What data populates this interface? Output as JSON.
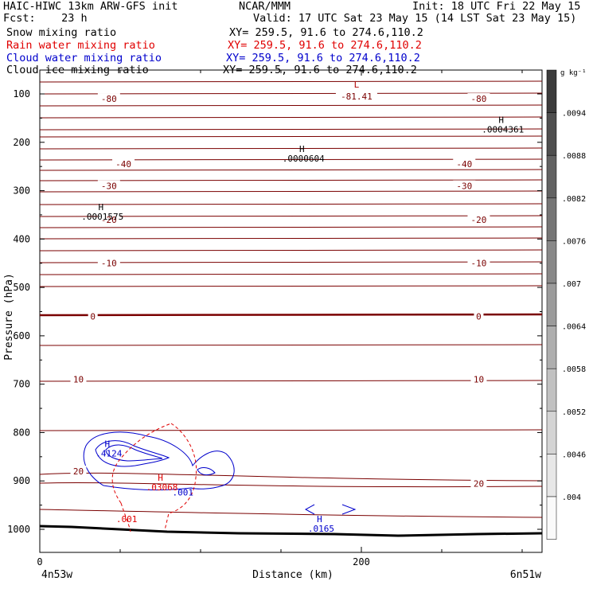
{
  "header": {
    "line1_left": "HAIC-HIWC 13km ARW-GFS init",
    "line1_mid": "NCAR/MMM",
    "line1_right": "Init: 18 UTC Fri 22 May 15",
    "line2_left": "Fcst:    23 h",
    "line2_right": "Valid: 17 UTC Sat 23 May 15 (14 LST Sat 23 May 15)",
    "fields": [
      {
        "name": "Snow mixing ratio",
        "xy": "XY= 259.5, 91.6 to 274.6,110.2",
        "color": "#000000"
      },
      {
        "name": "Rain water mixing ratio",
        "xy": "XY= 259.5, 91.6 to 274.6,110.2",
        "color": "#e00000"
      },
      {
        "name": "Cloud water mixing ratio",
        "xy": "XY= 259.5, 91.6 to 274.6,110.2",
        "color": "#0000cc"
      },
      {
        "name": "Cloud ice mixing ratio",
        "xy": "XY= 259.5, 91.6 to 274.6,110.2",
        "color": "#000000"
      }
    ]
  },
  "chart_data": {
    "type": "contour",
    "ylabel": "Pressure (hPa)",
    "xlabel": "Distance (km)",
    "xlim": [
      0,
      300
    ],
    "ylim": [
      1050,
      50
    ],
    "xticks": [
      0,
      200
    ],
    "yticks": [
      100,
      200,
      300,
      400,
      500,
      600,
      700,
      800,
      900,
      1000
    ],
    "left_endpoint_label": "4n53w",
    "right_endpoint_label": "6n51w",
    "colorbar": {
      "unit": "g kg⁻¹",
      "ticks": [
        ".0094",
        ".0088",
        ".0082",
        ".0076",
        ".007",
        ".0064",
        ".0058",
        ".0052",
        ".0046",
        ".004"
      ]
    },
    "temperature_labels": [
      {
        "text": "-80",
        "x": 43,
        "p": 110
      },
      {
        "text": "-80",
        "x": 273,
        "p": 110
      },
      {
        "text": "-81.41",
        "x": 197,
        "p": 105
      },
      {
        "text": "-40",
        "x": 52,
        "p": 245
      },
      {
        "text": "-40",
        "x": 264,
        "p": 245
      },
      {
        "text": "-30",
        "x": 43,
        "p": 290
      },
      {
        "text": "-30",
        "x": 264,
        "p": 290
      },
      {
        "text": "-20",
        "x": 43,
        "p": 360
      },
      {
        "text": "-20",
        "x": 273,
        "p": 360
      },
      {
        "text": "-10",
        "x": 43,
        "p": 450
      },
      {
        "text": "-10",
        "x": 273,
        "p": 450
      },
      {
        "text": "0",
        "x": 33,
        "p": 560
      },
      {
        "text": "0",
        "x": 273,
        "p": 560
      },
      {
        "text": "10",
        "x": 24,
        "p": 690
      },
      {
        "text": "10",
        "x": 273,
        "p": 690
      },
      {
        "text": "20",
        "x": 24,
        "p": 880
      },
      {
        "text": "20",
        "x": 273,
        "p": 905
      }
    ],
    "extrema": [
      {
        "kind": "L",
        "value": "",
        "x": 197,
        "p": 87,
        "color": "#b00000"
      },
      {
        "kind": "H",
        "value": ".0004361",
        "x": 287,
        "p": 160,
        "color": "#000000"
      },
      {
        "kind": "H",
        "value": ".0000604",
        "x": 163,
        "p": 220,
        "color": "#000000"
      },
      {
        "kind": "H",
        "value": ".0001575",
        "x": 38,
        "p": 340,
        "color": "#000000"
      },
      {
        "kind": "H",
        "value": ".4124",
        "x": 42,
        "p": 830,
        "color": "#0000cc"
      },
      {
        "kind": "H",
        "value": ".03068",
        "x": 75,
        "p": 900,
        "color": "#e00000"
      },
      {
        "kind": "H",
        "value": ".0165",
        "x": 174,
        "p": 985,
        "color": "#0000cc"
      }
    ],
    "contour_labels": [
      {
        "text": ".001",
        "x": 89,
        "p": 930,
        "color": "#0000cc"
      },
      {
        "text": ".001",
        "x": 54,
        "p": 985,
        "color": "#e00000"
      }
    ]
  }
}
